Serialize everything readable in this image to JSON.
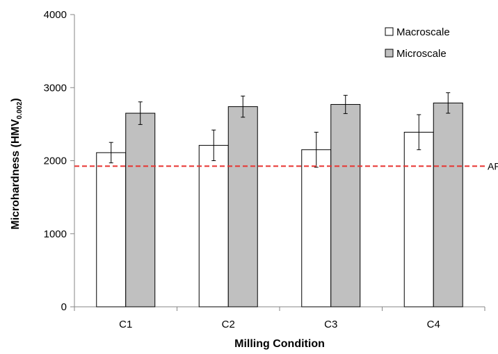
{
  "chart_data": {
    "type": "bar",
    "title": "",
    "xlabel": "Milling Condition",
    "ylabel": "Microhardness (HMV",
    "ylabel_sub": "0.002",
    "ylabel_close": ")",
    "ylim": [
      0,
      4000
    ],
    "yticks": [
      0,
      1000,
      2000,
      3000,
      4000
    ],
    "categories": [
      "C1",
      "C2",
      "C3",
      "C4"
    ],
    "series": [
      {
        "name": "Macroscale",
        "values": [
          2110,
          2210,
          2150,
          2390
        ],
        "errors": [
          140,
          210,
          240,
          240
        ],
        "color": "#ffffff"
      },
      {
        "name": "Microscale",
        "values": [
          2650,
          2740,
          2770,
          2790
        ],
        "errors": [
          155,
          145,
          125,
          140
        ],
        "color": "#c0c0c0"
      }
    ],
    "reference_line": {
      "label": "AR",
      "value": 1925,
      "color": "#e8322e"
    },
    "legend_position": "top-right",
    "grid": false
  }
}
